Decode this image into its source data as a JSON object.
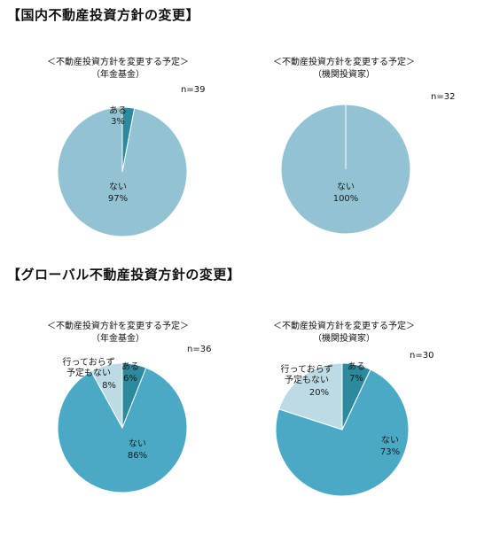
{
  "sections": {
    "domestic": {
      "title": "【国内不動産投資方針の変更】"
    },
    "global": {
      "title": "【グローバル不動産投資方針の変更】"
    }
  },
  "colors": {
    "ari": "#2b8a9e",
    "nai_domestic": "#93c3d3",
    "nai_global": "#4aaac6",
    "yotei_nashi": "#bcdbe5",
    "stroke": "#ffffff"
  },
  "chart_data": [
    {
      "type": "pie",
      "title": "＜不動産投資方針を変更する予定＞",
      "subtitle": "（年金基金）",
      "n": "n=39",
      "slices": [
        {
          "name": "ある",
          "value": 3,
          "label": "3%"
        },
        {
          "name": "ない",
          "value": 97,
          "label": "97%"
        }
      ]
    },
    {
      "type": "pie",
      "title": "＜不動産投資方針を変更する予定＞",
      "subtitle": "（機関投資家）",
      "n": "n=32",
      "slices": [
        {
          "name": "ない",
          "value": 100,
          "label": "100%"
        }
      ]
    },
    {
      "type": "pie",
      "title": "＜不動産投資方針を変更する予定＞",
      "subtitle": "（年金基金）",
      "n": "n=36",
      "slices": [
        {
          "name": "ある",
          "value": 6,
          "label": "6%"
        },
        {
          "name": "ない",
          "value": 86,
          "label": "86%"
        },
        {
          "name": "行っておらず予定もない",
          "value": 8,
          "label": "8%"
        }
      ]
    },
    {
      "type": "pie",
      "title": "＜不動産投資方針を変更する予定＞",
      "subtitle": "（機関投資家）",
      "n": "n=30",
      "slices": [
        {
          "name": "ある",
          "value": 7,
          "label": "7%"
        },
        {
          "name": "ない",
          "value": 73,
          "label": "73%"
        },
        {
          "name": "行っておらず予定もない",
          "value": 20,
          "label": "20%"
        }
      ]
    }
  ]
}
